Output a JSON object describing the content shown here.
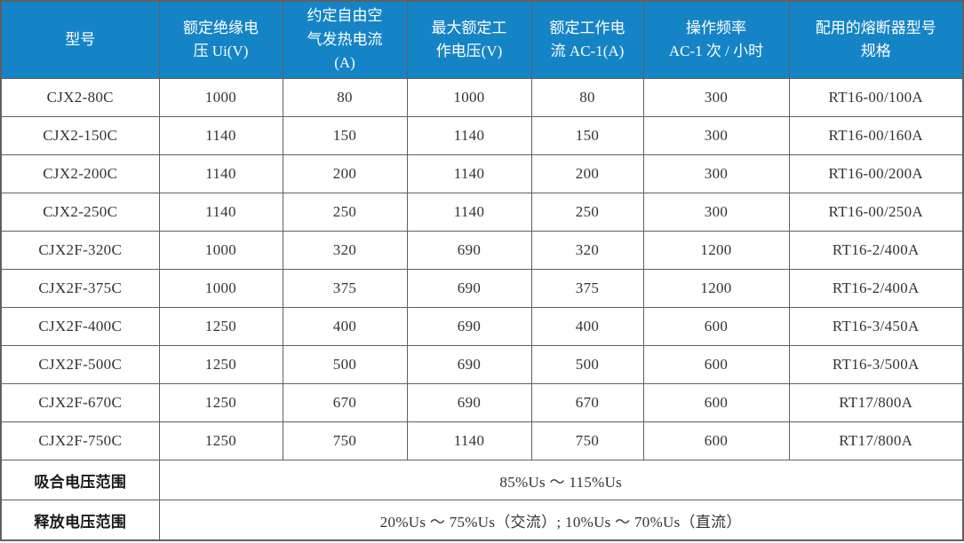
{
  "table": {
    "columns": [
      {
        "label": "型号"
      },
      {
        "label": "额定绝缘电\n压 Ui(V)"
      },
      {
        "label": "约定自由空\n气发热电流\n(A)"
      },
      {
        "label": "最大额定工\n作电压(V)"
      },
      {
        "label": "额定工作电\n流 AC-1(A)"
      },
      {
        "label": "操作频率\nAC-1 次 / 小时"
      },
      {
        "label": "配用的熔断器型号\n规格"
      }
    ],
    "rows": [
      [
        "CJX2-80C",
        "1000",
        "80",
        "1000",
        "80",
        "300",
        "RT16-00/100A"
      ],
      [
        "CJX2-150C",
        "1140",
        "150",
        "1140",
        "150",
        "300",
        "RT16-00/160A"
      ],
      [
        "CJX2-200C",
        "1140",
        "200",
        "1140",
        "200",
        "300",
        "RT16-00/200A"
      ],
      [
        "CJX2-250C",
        "1140",
        "250",
        "1140",
        "250",
        "300",
        "RT16-00/250A"
      ],
      [
        "CJX2F-320C",
        "1000",
        "320",
        "690",
        "320",
        "1200",
        "RT16-2/400A"
      ],
      [
        "CJX2F-375C",
        "1000",
        "375",
        "690",
        "375",
        "1200",
        "RT16-2/400A"
      ],
      [
        "CJX2F-400C",
        "1250",
        "400",
        "690",
        "400",
        "600",
        "RT16-3/450A"
      ],
      [
        "CJX2F-500C",
        "1250",
        "500",
        "690",
        "500",
        "600",
        "RT16-3/500A"
      ],
      [
        "CJX2F-670C",
        "1250",
        "670",
        "690",
        "670",
        "600",
        "RT17/800A"
      ],
      [
        "CJX2F-750C",
        "1250",
        "750",
        "1140",
        "750",
        "600",
        "RT17/800A"
      ]
    ],
    "footer_rows": [
      {
        "label": "吸合电压范围",
        "value": "85%Us ～ 115%Us"
      },
      {
        "label": "释放电压范围",
        "value": "20%Us ～ 75%Us（交流）; 10%Us ～ 70%Us（直流）"
      }
    ]
  },
  "colors": {
    "header_bg": "#1584C6",
    "header_text": "#FFFFFF",
    "border": "#606060",
    "body_text": "#333333"
  }
}
